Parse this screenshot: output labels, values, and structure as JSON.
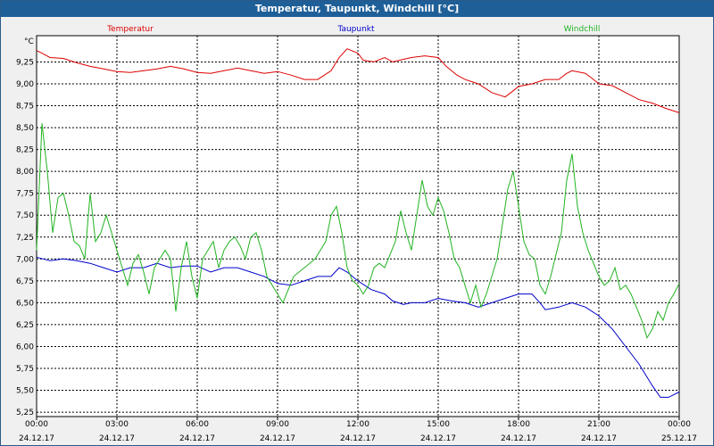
{
  "window": {
    "title": "Temperatur, Taupunkt, Windchill [°C]"
  },
  "chart_data": {
    "type": "line",
    "title": "Temperatur, Taupunkt, Windchill [°C]",
    "ylabel": "°C",
    "ylim": [
      5.2,
      9.55
    ],
    "yticks": [
      "5,25",
      "5,50",
      "5,75",
      "6,00",
      "6,25",
      "6,50",
      "6,75",
      "7,00",
      "7,25",
      "7,50",
      "7,75",
      "8,00",
      "8,25",
      "8,50",
      "8,75",
      "9,00",
      "9,25"
    ],
    "ytick_values": [
      5.25,
      5.5,
      5.75,
      6.0,
      6.25,
      6.5,
      6.75,
      7.0,
      7.25,
      7.5,
      7.75,
      8.0,
      8.25,
      8.5,
      8.75,
      9.0,
      9.25
    ],
    "xlim": [
      0,
      24
    ],
    "xtick_values": [
      0,
      3,
      6,
      9,
      12,
      15,
      18,
      21,
      24
    ],
    "xticks_time": [
      "00:00",
      "03:00",
      "06:00",
      "09:00",
      "12:00",
      "15:00",
      "18:00",
      "21:00",
      "00:00"
    ],
    "xticks_date": [
      "24.12.17",
      "24.12.17",
      "24.12.17",
      "24.12.17",
      "24.12.17",
      "24.12.17",
      "24.12.17",
      "24.12.17",
      "25.12.17"
    ],
    "grid": true,
    "series": [
      {
        "name": "Temperatur",
        "color": "#dd0000",
        "points": [
          [
            0,
            9.38
          ],
          [
            0.2,
            9.35
          ],
          [
            0.5,
            9.3
          ],
          [
            1,
            9.29
          ],
          [
            1.5,
            9.24
          ],
          [
            2,
            9.2
          ],
          [
            2.5,
            9.17
          ],
          [
            3,
            9.14
          ],
          [
            3.5,
            9.13
          ],
          [
            4,
            9.15
          ],
          [
            4.5,
            9.17
          ],
          [
            5,
            9.2
          ],
          [
            5.5,
            9.17
          ],
          [
            6,
            9.13
          ],
          [
            6.5,
            9.12
          ],
          [
            7,
            9.15
          ],
          [
            7.5,
            9.18
          ],
          [
            8,
            9.15
          ],
          [
            8.5,
            9.12
          ],
          [
            9,
            9.14
          ],
          [
            9.5,
            9.1
          ],
          [
            10,
            9.05
          ],
          [
            10.5,
            9.05
          ],
          [
            11,
            9.15
          ],
          [
            11.3,
            9.3
          ],
          [
            11.6,
            9.4
          ],
          [
            12,
            9.35
          ],
          [
            12.2,
            9.27
          ],
          [
            12.6,
            9.25
          ],
          [
            13,
            9.3
          ],
          [
            13.3,
            9.25
          ],
          [
            13.7,
            9.28
          ],
          [
            14,
            9.3
          ],
          [
            14.5,
            9.32
          ],
          [
            15,
            9.3
          ],
          [
            15.3,
            9.2
          ],
          [
            15.7,
            9.1
          ],
          [
            16,
            9.05
          ],
          [
            16.5,
            9.0
          ],
          [
            17,
            8.9
          ],
          [
            17.5,
            8.85
          ],
          [
            17.8,
            8.92
          ],
          [
            18,
            8.97
          ],
          [
            18.5,
            9.0
          ],
          [
            19,
            9.05
          ],
          [
            19.5,
            9.05
          ],
          [
            19.8,
            9.12
          ],
          [
            20,
            9.15
          ],
          [
            20.5,
            9.12
          ],
          [
            20.8,
            9.05
          ],
          [
            21,
            9.0
          ],
          [
            21.5,
            8.98
          ],
          [
            22,
            8.9
          ],
          [
            22.5,
            8.82
          ],
          [
            23,
            8.78
          ],
          [
            23.5,
            8.72
          ],
          [
            24,
            8.67
          ]
        ]
      },
      {
        "name": "Taupunkt",
        "color": "#0000cc",
        "points": [
          [
            0,
            7.02
          ],
          [
            0.5,
            6.98
          ],
          [
            1,
            7.0
          ],
          [
            1.5,
            6.98
          ],
          [
            2,
            6.95
          ],
          [
            2.5,
            6.9
          ],
          [
            3,
            6.85
          ],
          [
            3.5,
            6.9
          ],
          [
            4,
            6.9
          ],
          [
            4.5,
            6.95
          ],
          [
            5,
            6.9
          ],
          [
            5.5,
            6.92
          ],
          [
            6,
            6.92
          ],
          [
            6.5,
            6.85
          ],
          [
            7,
            6.9
          ],
          [
            7.5,
            6.9
          ],
          [
            8,
            6.85
          ],
          [
            8.5,
            6.8
          ],
          [
            9,
            6.72
          ],
          [
            9.5,
            6.7
          ],
          [
            10,
            6.75
          ],
          [
            10.5,
            6.8
          ],
          [
            11,
            6.8
          ],
          [
            11.3,
            6.9
          ],
          [
            11.6,
            6.85
          ],
          [
            12,
            6.75
          ],
          [
            12.5,
            6.65
          ],
          [
            13,
            6.6
          ],
          [
            13.3,
            6.52
          ],
          [
            13.7,
            6.48
          ],
          [
            14,
            6.5
          ],
          [
            14.5,
            6.5
          ],
          [
            15,
            6.55
          ],
          [
            15.5,
            6.52
          ],
          [
            16,
            6.5
          ],
          [
            16.5,
            6.45
          ],
          [
            17,
            6.5
          ],
          [
            17.5,
            6.55
          ],
          [
            18,
            6.6
          ],
          [
            18.5,
            6.6
          ],
          [
            18.8,
            6.5
          ],
          [
            19,
            6.42
          ],
          [
            19.5,
            6.45
          ],
          [
            20,
            6.5
          ],
          [
            20.5,
            6.45
          ],
          [
            21,
            6.35
          ],
          [
            21.5,
            6.2
          ],
          [
            22,
            6.0
          ],
          [
            22.5,
            5.8
          ],
          [
            23,
            5.55
          ],
          [
            23.3,
            5.42
          ],
          [
            23.6,
            5.42
          ],
          [
            24,
            5.48
          ]
        ]
      },
      {
        "name": "Windchill",
        "color": "#22b322",
        "points": [
          [
            0,
            7.1
          ],
          [
            0.2,
            8.55
          ],
          [
            0.4,
            8.0
          ],
          [
            0.6,
            7.3
          ],
          [
            0.8,
            7.7
          ],
          [
            1,
            7.75
          ],
          [
            1.2,
            7.5
          ],
          [
            1.4,
            7.2
          ],
          [
            1.6,
            7.15
          ],
          [
            1.8,
            7.0
          ],
          [
            2,
            7.75
          ],
          [
            2.2,
            7.2
          ],
          [
            2.4,
            7.3
          ],
          [
            2.6,
            7.5
          ],
          [
            2.8,
            7.3
          ],
          [
            3,
            7.1
          ],
          [
            3.2,
            6.9
          ],
          [
            3.4,
            6.7
          ],
          [
            3.6,
            6.95
          ],
          [
            3.8,
            7.05
          ],
          [
            4,
            6.85
          ],
          [
            4.2,
            6.6
          ],
          [
            4.4,
            6.9
          ],
          [
            4.6,
            7.0
          ],
          [
            4.8,
            7.1
          ],
          [
            5,
            7.0
          ],
          [
            5.2,
            6.4
          ],
          [
            5.4,
            6.9
          ],
          [
            5.6,
            7.2
          ],
          [
            5.8,
            6.8
          ],
          [
            6,
            6.55
          ],
          [
            6.2,
            7.0
          ],
          [
            6.4,
            7.1
          ],
          [
            6.6,
            7.2
          ],
          [
            6.8,
            6.9
          ],
          [
            7,
            7.1
          ],
          [
            7.2,
            7.2
          ],
          [
            7.4,
            7.25
          ],
          [
            7.6,
            7.15
          ],
          [
            7.8,
            7.0
          ],
          [
            8,
            7.25
          ],
          [
            8.2,
            7.3
          ],
          [
            8.4,
            7.1
          ],
          [
            8.6,
            6.8
          ],
          [
            8.8,
            6.7
          ],
          [
            9,
            6.6
          ],
          [
            9.2,
            6.5
          ],
          [
            9.4,
            6.65
          ],
          [
            9.6,
            6.8
          ],
          [
            9.8,
            6.85
          ],
          [
            10,
            6.9
          ],
          [
            10.2,
            6.95
          ],
          [
            10.4,
            7.0
          ],
          [
            10.6,
            7.1
          ],
          [
            10.8,
            7.2
          ],
          [
            11,
            7.5
          ],
          [
            11.2,
            7.6
          ],
          [
            11.4,
            7.3
          ],
          [
            11.6,
            6.9
          ],
          [
            11.8,
            6.75
          ],
          [
            12,
            6.7
          ],
          [
            12.2,
            6.6
          ],
          [
            12.4,
            6.7
          ],
          [
            12.6,
            6.9
          ],
          [
            12.8,
            6.95
          ],
          [
            13,
            6.9
          ],
          [
            13.2,
            7.05
          ],
          [
            13.4,
            7.2
          ],
          [
            13.6,
            7.55
          ],
          [
            13.8,
            7.3
          ],
          [
            14,
            7.1
          ],
          [
            14.2,
            7.5
          ],
          [
            14.4,
            7.9
          ],
          [
            14.6,
            7.6
          ],
          [
            14.8,
            7.5
          ],
          [
            15,
            7.7
          ],
          [
            15.2,
            7.55
          ],
          [
            15.4,
            7.3
          ],
          [
            15.6,
            7.0
          ],
          [
            15.8,
            6.9
          ],
          [
            16,
            6.7
          ],
          [
            16.2,
            6.5
          ],
          [
            16.4,
            6.7
          ],
          [
            16.6,
            6.45
          ],
          [
            16.8,
            6.6
          ],
          [
            17,
            6.8
          ],
          [
            17.2,
            7.0
          ],
          [
            17.4,
            7.4
          ],
          [
            17.6,
            7.8
          ],
          [
            17.8,
            8.0
          ],
          [
            18,
            7.6
          ],
          [
            18.2,
            7.2
          ],
          [
            18.4,
            7.05
          ],
          [
            18.6,
            7.0
          ],
          [
            18.8,
            6.7
          ],
          [
            19,
            6.6
          ],
          [
            19.2,
            6.8
          ],
          [
            19.4,
            7.05
          ],
          [
            19.6,
            7.3
          ],
          [
            19.8,
            7.9
          ],
          [
            20,
            8.2
          ],
          [
            20.2,
            7.6
          ],
          [
            20.4,
            7.3
          ],
          [
            20.6,
            7.1
          ],
          [
            20.8,
            6.95
          ],
          [
            21,
            6.8
          ],
          [
            21.2,
            6.7
          ],
          [
            21.4,
            6.75
          ],
          [
            21.6,
            6.9
          ],
          [
            21.8,
            6.65
          ],
          [
            22,
            6.7
          ],
          [
            22.2,
            6.6
          ],
          [
            22.4,
            6.45
          ],
          [
            22.6,
            6.3
          ],
          [
            22.8,
            6.1
          ],
          [
            23,
            6.2
          ],
          [
            23.2,
            6.4
          ],
          [
            23.4,
            6.3
          ],
          [
            23.6,
            6.5
          ],
          [
            23.8,
            6.6
          ],
          [
            24,
            6.72
          ]
        ]
      }
    ]
  }
}
